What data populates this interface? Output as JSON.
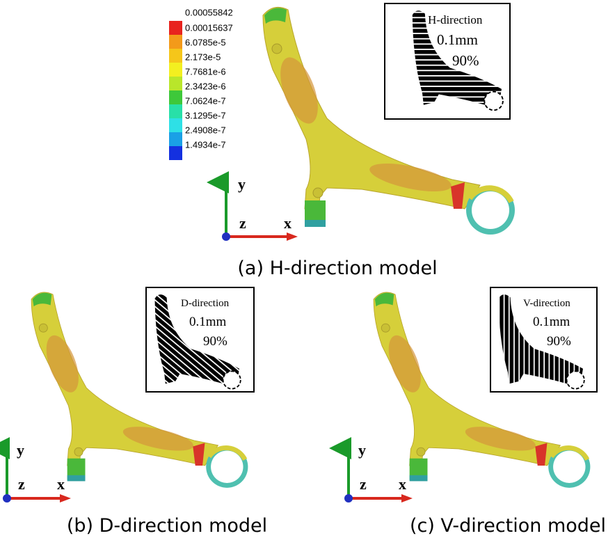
{
  "legend": {
    "values": [
      "0.00055842",
      "0.00015637",
      "6.0785e-5",
      "2.173e-5",
      "7.7681e-6",
      "2.3423e-6",
      "7.0624e-7",
      "3.1295e-7",
      "2.4908e-7",
      "1.4934e-7"
    ]
  },
  "panels": [
    {
      "caption": "(a) H-direction model",
      "inset": {
        "direction": "H-direction",
        "thickness": "0.1mm",
        "ratio": "90%"
      },
      "axes": {
        "y": "y",
        "z": "z",
        "x": "x"
      }
    },
    {
      "caption": "(b) D-direction model",
      "inset": {
        "direction": "D-direction",
        "thickness": "0.1mm",
        "ratio": "90%"
      },
      "axes": {
        "y": "y",
        "z": "z",
        "x": "x"
      }
    },
    {
      "caption": "(c) V-direction model",
      "inset": {
        "direction": "V-direction",
        "thickness": "0.1mm",
        "ratio": "90%"
      },
      "axes": {
        "y": "y",
        "z": "z",
        "x": "x"
      }
    }
  ]
}
